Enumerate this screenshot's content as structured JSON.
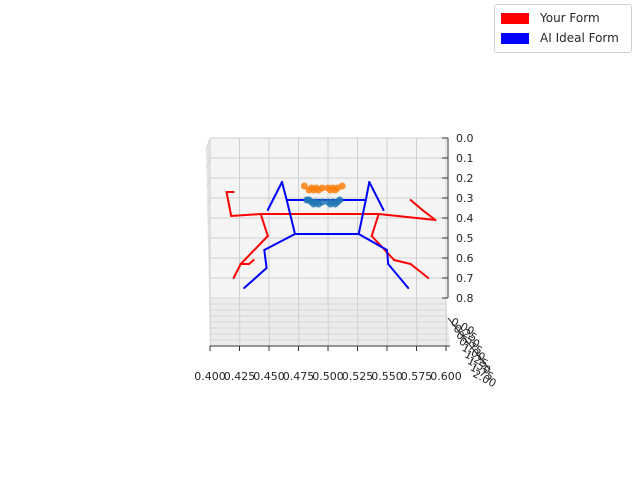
{
  "chart_data": {
    "type": "line",
    "title": "",
    "projection": "3d",
    "grid": true,
    "legend_placement": "top-right",
    "xlim": [
      0.4,
      0.6
    ],
    "zlim": [
      0.0,
      0.8
    ],
    "x_tick_labels": [
      "0.400",
      "0.425",
      "0.450",
      "0.475",
      "0.500",
      "0.525",
      "0.550",
      "0.575",
      "0.600"
    ],
    "z_tick_labels": [
      "0.0",
      "0.1",
      "0.2",
      "0.3",
      "0.4",
      "0.5",
      "0.6",
      "0.7",
      "0.8"
    ],
    "y_tick_labels": [
      "0.00",
      "0.25",
      "0.50",
      "0.75",
      "1.00",
      "1.25",
      "1.50",
      "1.75",
      "2.00"
    ],
    "series": [
      {
        "name": "Your Form",
        "color": "#ff0000",
        "segments": [
          [
            [
              0.443,
              0.38
            ],
            [
              0.492,
              0.38
            ]
          ],
          [
            [
              0.443,
              0.38
            ],
            [
              0.418,
              0.39
            ]
          ],
          [
            [
              0.418,
              0.39
            ],
            [
              0.414,
              0.27
            ]
          ],
          [
            [
              0.414,
              0.27
            ],
            [
              0.42,
              0.27
            ]
          ],
          [
            [
              0.492,
              0.38
            ],
            [
              0.543,
              0.38
            ]
          ],
          [
            [
              0.543,
              0.38
            ],
            [
              0.591,
              0.41
            ]
          ],
          [
            [
              0.591,
              0.41
            ],
            [
              0.58,
              0.36
            ]
          ],
          [
            [
              0.58,
              0.36
            ],
            [
              0.57,
              0.31
            ]
          ],
          [
            [
              0.443,
              0.38
            ],
            [
              0.449,
              0.49
            ]
          ],
          [
            [
              0.449,
              0.49
            ],
            [
              0.426,
              0.63
            ]
          ],
          [
            [
              0.426,
              0.63
            ],
            [
              0.42,
              0.7
            ]
          ],
          [
            [
              0.426,
              0.63
            ],
            [
              0.433,
              0.63
            ]
          ],
          [
            [
              0.433,
              0.63
            ],
            [
              0.437,
              0.61
            ]
          ],
          [
            [
              0.543,
              0.38
            ],
            [
              0.537,
              0.49
            ]
          ],
          [
            [
              0.537,
              0.49
            ],
            [
              0.556,
              0.61
            ]
          ],
          [
            [
              0.556,
              0.61
            ],
            [
              0.57,
              0.63
            ]
          ],
          [
            [
              0.57,
              0.63
            ],
            [
              0.585,
              0.7
            ]
          ]
        ]
      },
      {
        "name": "AI Ideal Form",
        "color": "#0000ff",
        "segments": [
          [
            [
              0.465,
              0.31
            ],
            [
              0.532,
              0.31
            ]
          ],
          [
            [
              0.465,
              0.31
            ],
            [
              0.461,
              0.22
            ]
          ],
          [
            [
              0.461,
              0.22
            ],
            [
              0.449,
              0.36
            ]
          ],
          [
            [
              0.532,
              0.31
            ],
            [
              0.535,
              0.22
            ]
          ],
          [
            [
              0.535,
              0.22
            ],
            [
              0.547,
              0.36
            ]
          ],
          [
            [
              0.465,
              0.31
            ],
            [
              0.472,
              0.48
            ]
          ],
          [
            [
              0.532,
              0.31
            ],
            [
              0.526,
              0.48
            ]
          ],
          [
            [
              0.472,
              0.48
            ],
            [
              0.526,
              0.48
            ]
          ],
          [
            [
              0.472,
              0.48
            ],
            [
              0.446,
              0.56
            ]
          ],
          [
            [
              0.446,
              0.56
            ],
            [
              0.448,
              0.65
            ]
          ],
          [
            [
              0.448,
              0.65
            ],
            [
              0.429,
              0.75
            ]
          ],
          [
            [
              0.526,
              0.48
            ],
            [
              0.55,
              0.56
            ]
          ],
          [
            [
              0.55,
              0.56
            ],
            [
              0.551,
              0.63
            ]
          ],
          [
            [
              0.551,
              0.63
            ],
            [
              0.568,
              0.75
            ]
          ]
        ]
      }
    ],
    "keypoints": [
      {
        "color": "#ff7f0e",
        "points": [
          [
            0.495,
            0.25
          ],
          [
            0.492,
            0.26
          ],
          [
            0.49,
            0.25
          ],
          [
            0.488,
            0.26
          ],
          [
            0.486,
            0.25
          ],
          [
            0.484,
            0.26
          ],
          [
            0.5,
            0.25
          ],
          [
            0.502,
            0.26
          ],
          [
            0.504,
            0.25
          ],
          [
            0.506,
            0.26
          ],
          [
            0.508,
            0.25
          ],
          [
            0.512,
            0.24
          ],
          [
            0.48,
            0.24
          ]
        ]
      },
      {
        "color": "#1f77b4",
        "points": [
          [
            0.495,
            0.32
          ],
          [
            0.492,
            0.33
          ],
          [
            0.49,
            0.32
          ],
          [
            0.488,
            0.33
          ],
          [
            0.486,
            0.32
          ],
          [
            0.484,
            0.31
          ],
          [
            0.5,
            0.32
          ],
          [
            0.502,
            0.33
          ],
          [
            0.504,
            0.32
          ],
          [
            0.506,
            0.33
          ],
          [
            0.508,
            0.32
          ],
          [
            0.51,
            0.31
          ],
          [
            0.482,
            0.31
          ]
        ]
      }
    ]
  },
  "legend": [
    {
      "label": "Your Form",
      "color": "#ff0000"
    },
    {
      "label": "AI Ideal Form",
      "color": "#0000ff"
    }
  ]
}
